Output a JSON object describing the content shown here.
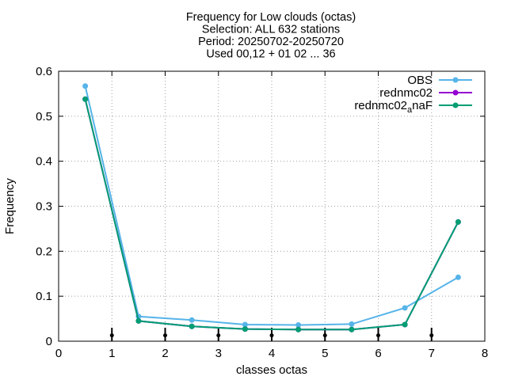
{
  "chart_data": {
    "type": "line",
    "title_lines": [
      "Frequency  for Low clouds (octas)",
      "Selection: ALL    632 stations",
      "Period: 20250702-20250720",
      "Used 00,12 + 01 02 ... 36"
    ],
    "xlabel": "classes octas",
    "ylabel": "Frequency",
    "xlim": [
      0,
      8
    ],
    "ylim": [
      0,
      0.6
    ],
    "x_ticks": [
      "0",
      "1",
      "2",
      "3",
      "4",
      "5",
      "6",
      "7",
      "8"
    ],
    "y_ticks": [
      "0",
      "0.1",
      "0.2",
      "0.3",
      "0.4",
      "0.5",
      "0.6"
    ],
    "grid": true,
    "legend_position": "top-right",
    "x": [
      0.5,
      1.5,
      2.5,
      3.5,
      4.5,
      5.5,
      6.5,
      7.5
    ],
    "series": [
      {
        "name": "OBS",
        "color": "#56b4e9",
        "marker": "circle",
        "values": [
          0.567,
          0.055,
          0.047,
          0.037,
          0.036,
          0.038,
          0.074,
          0.142
        ]
      },
      {
        "name": "rednmc02",
        "color": "#9400d3",
        "marker": "circle",
        "values": [
          0.538,
          0.045,
          0.033,
          0.027,
          0.026,
          0.026,
          0.037,
          0.265
        ]
      },
      {
        "name": "rednmc02",
        "name_subscript": "a",
        "name_suffix": "naF",
        "color": "#009e73",
        "marker": "circle",
        "values": [
          0.538,
          0.045,
          0.033,
          0.027,
          0.026,
          0.026,
          0.037,
          0.265
        ]
      }
    ],
    "error_bars": {
      "x": [
        1,
        2,
        3,
        4,
        5,
        6,
        7
      ],
      "low": [
        0.0,
        0.0,
        0.0,
        0.0,
        0.0,
        0.0,
        0.0
      ],
      "high": [
        0.03,
        0.03,
        0.03,
        0.03,
        0.03,
        0.03,
        0.03
      ],
      "center": [
        0.013,
        0.013,
        0.013,
        0.013,
        0.013,
        0.013,
        0.013
      ]
    }
  }
}
